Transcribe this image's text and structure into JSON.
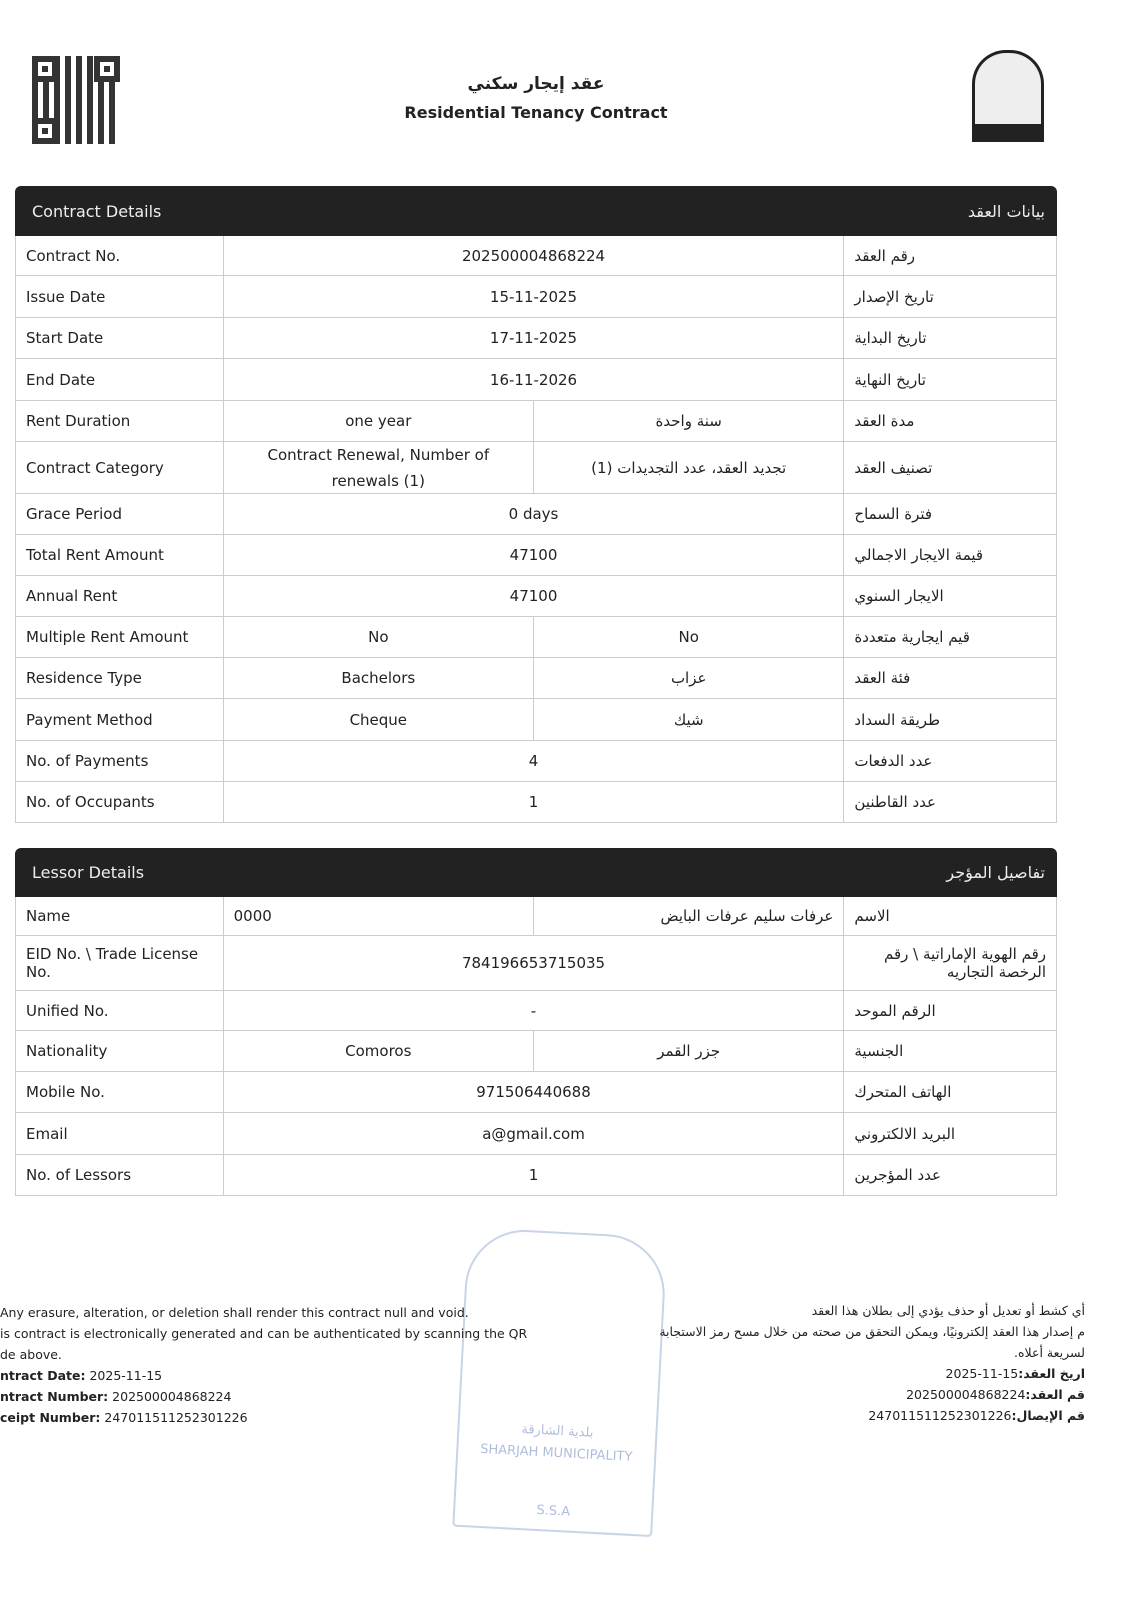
{
  "header": {
    "title_ar": "عقد إيجار سكني",
    "title_en": "Residential Tenancy Contract",
    "logo_text": "بلدية الشارقة SHARJAH MUNICIPALITY"
  },
  "contract": {
    "title_en": "Contract Details",
    "title_ar": "بيانات العقد",
    "rows": [
      {
        "en": "Contract No.",
        "value": "202500004868224",
        "ar": "رقم العقد"
      },
      {
        "en": "Issue Date",
        "value": "15-11-2025",
        "ar": "تاريخ الإصدار"
      },
      {
        "en": "Start Date",
        "value": "17-11-2025",
        "ar": "تاريخ البداية"
      },
      {
        "en": "End Date",
        "value": "16-11-2026",
        "ar": "تاريخ النهاية"
      },
      {
        "en": "Rent Duration",
        "value_en": "one year",
        "value_ar": "سنة واحدة",
        "ar": "مدة العقد"
      },
      {
        "en": "Contract Category",
        "value_en": "Contract Renewal, Number of renewals (1)",
        "value_ar": "تجديد العقد، عدد التجديدات (1)",
        "ar": "تصنيف العقد"
      },
      {
        "en": "Grace Period",
        "value": "0 days",
        "ar": "فترة السماح"
      },
      {
        "en": "Total Rent Amount",
        "value": "47100",
        "ar": "قيمة الايجار الاجمالي"
      },
      {
        "en": "Annual Rent",
        "value": "47100",
        "ar": "الايجار السنوي"
      },
      {
        "en": "Multiple Rent Amount",
        "value_en": "No",
        "value_ar": "No",
        "ar": "قيم ايجارية متعددة"
      },
      {
        "en": "Residence Type",
        "value_en": "Bachelors",
        "value_ar": "عزاب",
        "ar": "فئة العقد"
      },
      {
        "en": "Payment Method",
        "value_en": "Cheque",
        "value_ar": "شيك",
        "ar": "طريقة السداد"
      },
      {
        "en": "No. of Payments",
        "value": "4",
        "ar": "عدد الدفعات"
      },
      {
        "en": "No. of Occupants",
        "value": "1",
        "ar": "عدد القاطنين"
      }
    ]
  },
  "lessor": {
    "title_en": "Lessor Details",
    "title_ar": "تفاصيل المؤجر",
    "rows": [
      {
        "en": "Name",
        "value_en": "0000",
        "value_ar": "عرفات سليم عرفات البايض",
        "ar": "الاسم"
      },
      {
        "en": "EID No. \\ Trade License No.",
        "value": "784196653715035",
        "ar": "رقم الهوية الإماراتية \\ رقم الرخصة التجاريه"
      },
      {
        "en": "Unified No.",
        "value": "-",
        "ar": "الرقم الموحد"
      },
      {
        "en": "Nationality",
        "value_en": "Comoros",
        "value_ar": "جزر القمر",
        "ar": "الجنسية"
      },
      {
        "en": "Mobile No.",
        "value": "971506440688",
        "ar": "الهاتف المتحرك"
      },
      {
        "en": "Email",
        "value": "a@gmail.com",
        "ar": "البريد الالكتروني"
      },
      {
        "en": "No. of Lessors",
        "value": "1",
        "ar": "عدد المؤجرين"
      }
    ]
  },
  "footer_en": {
    "line1": "Any erasure, alteration, or deletion shall render this contract null and void.",
    "line2": "is contract is electronically generated and can be authenticated by scanning the QR",
    "line3": "de above.",
    "date_label": "ntract Date:",
    "date": "2025-11-15",
    "number_label": "ntract Number:",
    "number": "202500004868224",
    "receipt_label": "ceipt Number:",
    "receipt": "247011511252301226"
  },
  "footer_ar": {
    "line1": "أي كشط أو تعديل أو حذف يؤدي إلى بطلان هذا العقد",
    "line2": "م إصدار هذا العقد إلكترونيًا، ويمكن التحقق من صحته من خلال مسح رمز الاستجابة",
    "line3": "لسريعة أعلاه.",
    "date_label": "اريخ العقد:",
    "date": "2025-11-15",
    "number_label": "قم العقد:",
    "number": "202500004868224",
    "receipt_label": "قم الإيصال:",
    "receipt": "247011511252301226"
  },
  "stamp": {
    "text_en": "SHARJAH MUNICIPALITY",
    "text_ar": "بلدية الشارقة",
    "initials": "S.S.A"
  }
}
